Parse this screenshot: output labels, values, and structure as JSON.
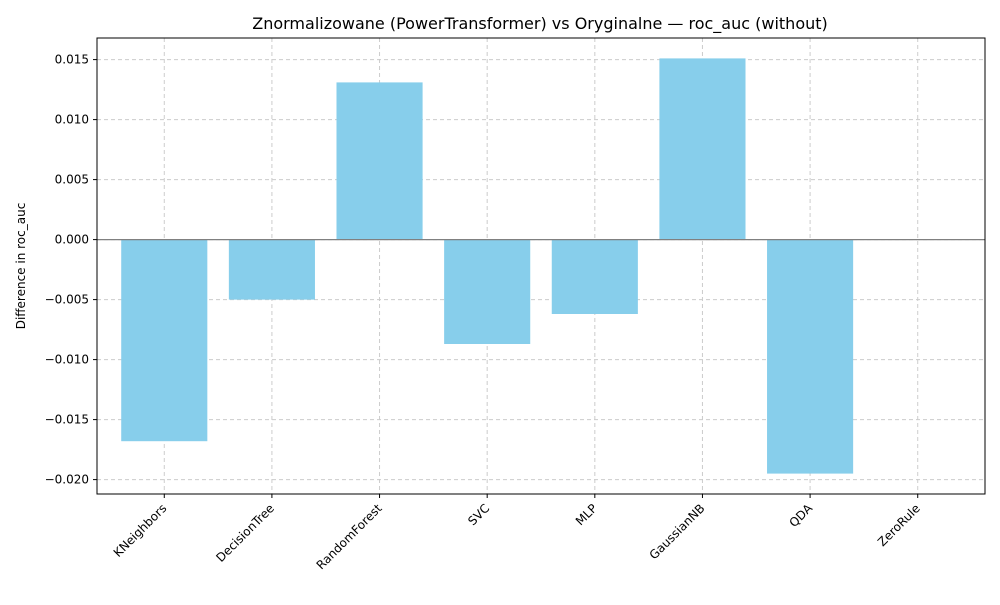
{
  "chart_data": {
    "type": "bar",
    "title": "Znormalizowane (PowerTransformer) vs Oryginalne — roc_auc (without)",
    "xlabel": "",
    "ylabel": "Difference in roc_auc",
    "categories": [
      "KNeighbors",
      "DecisionTree",
      "RandomForest",
      "SVC",
      "MLP",
      "GaussianNB",
      "QDA",
      "ZeroRule"
    ],
    "values": [
      -0.0168,
      -0.005,
      0.0131,
      -0.0087,
      -0.0062,
      0.0151,
      -0.0195,
      0.0
    ],
    "ylim": [
      -0.0212,
      0.0168
    ],
    "yticks": [
      0.015,
      0.01,
      0.005,
      0.0,
      -0.005,
      -0.01,
      -0.015,
      -0.02
    ],
    "ytick_labels": [
      "0.015",
      "0.010",
      "0.005",
      "0.000",
      "−0.005",
      "−0.010",
      "−0.015",
      "−0.020"
    ],
    "grid": true,
    "zero_line": true,
    "colors": {
      "bar": "#87ceeb",
      "grid": "#cccccc",
      "zero_line": "#808080",
      "axis": "#000000"
    }
  }
}
